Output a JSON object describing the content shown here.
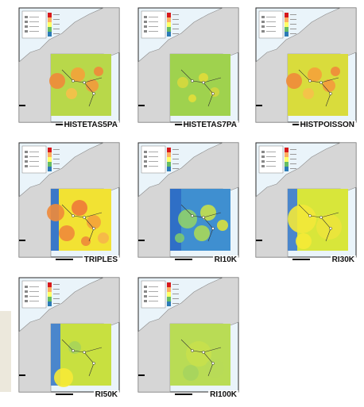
{
  "colors": {
    "sea": "#eaf4fa",
    "land": "#d6d6d6",
    "frame": "#2a2a2a",
    "label_bg": "#ffffff",
    "colorbar": [
      "#d7191c",
      "#fdae61",
      "#ffff66",
      "#66bd63",
      "#2c7bb6"
    ]
  },
  "legend": {
    "left_heading": "",
    "right_heading": ""
  },
  "panels": [
    {
      "label": "HISTETAS5PA",
      "base": "#b8d84a",
      "blobs": "hot"
    },
    {
      "label": "HISTETAS7PA",
      "base": "#9fd24e",
      "blobs": "mild"
    },
    {
      "label": "HISTPOISSON",
      "base": "#d9dc3c",
      "blobs": "hot"
    },
    {
      "label": "TRIPLES",
      "base": "#f2e233",
      "blobs": "triples"
    },
    {
      "label": "RI10K",
      "base": "#3f8fd0",
      "blobs": "ri10k"
    },
    {
      "label": "RI30K",
      "base": "#d8e63a",
      "blobs": "ri30k"
    },
    {
      "label": "RI50K",
      "base": "#c8e040",
      "blobs": "ri50k"
    },
    {
      "label": "RI100K",
      "base": "#b9dc55",
      "blobs": "ri100k"
    }
  ]
}
